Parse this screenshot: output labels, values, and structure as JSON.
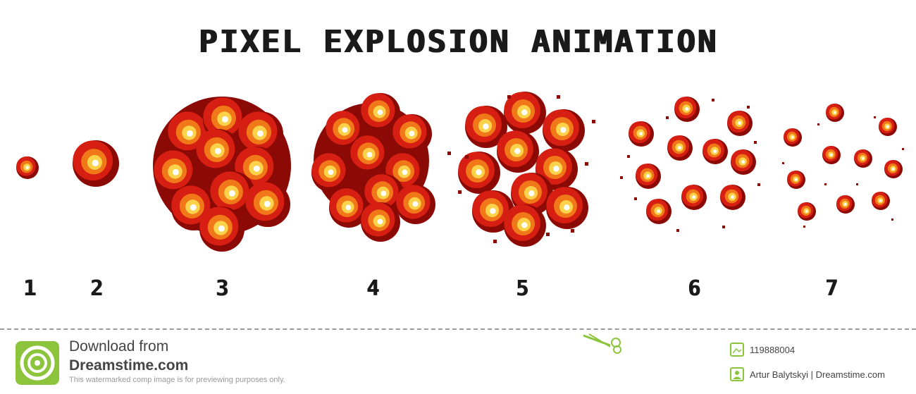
{
  "title": "PIXEL EXPLOSION ANIMATION",
  "frames": [
    {
      "label": "1",
      "stage": 1
    },
    {
      "label": "2",
      "stage": 2
    },
    {
      "label": "3",
      "stage": 3
    },
    {
      "label": "4",
      "stage": 4
    },
    {
      "label": "5",
      "stage": 5
    },
    {
      "label": "6",
      "stage": 6
    },
    {
      "label": "7",
      "stage": 7
    }
  ],
  "colors": {
    "dark_red": "#8c0a06",
    "red": "#d61e12",
    "orange": "#f07818",
    "yellow": "#fbd24a",
    "white": "#ffffff",
    "green": "#8cc43c"
  },
  "footer": {
    "download_line1": "Download from",
    "download_line2": "Dreamstime.com",
    "watermark_note": "This watermarked comp image is for previewing purposes only.",
    "image_id": "119888004",
    "author": "Artur Balytskyi | Dreamstime.com"
  },
  "icons": [
    "dreamstime-logo-icon",
    "scissors-icon",
    "image-id-icon",
    "author-icon"
  ]
}
